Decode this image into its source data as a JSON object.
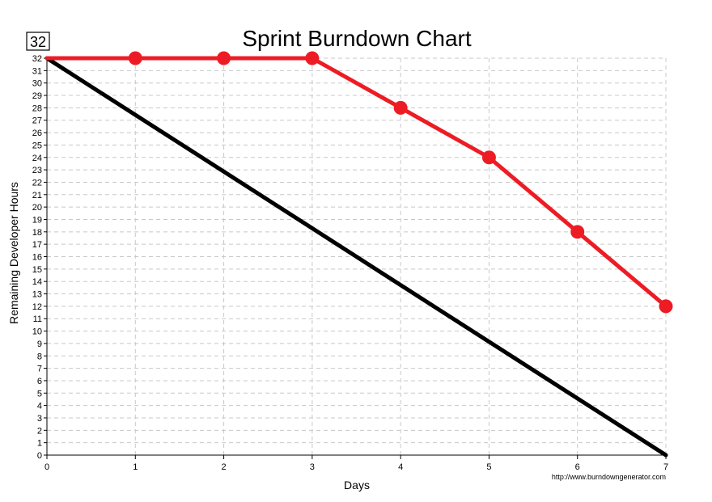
{
  "chart_data": {
    "type": "line",
    "title": "Sprint Burndown Chart",
    "xlabel": "Days",
    "ylabel": "Remaining Developer Hours",
    "x": [
      0,
      1,
      2,
      3,
      4,
      5,
      6,
      7
    ],
    "xlim": [
      0,
      7
    ],
    "ylim": [
      0,
      32
    ],
    "y_ticks_step": 1,
    "grid": true,
    "series": [
      {
        "values": [
          32,
          27.43,
          22.86,
          18.29,
          13.71,
          9.14,
          4.57,
          0
        ],
        "color": "#000000",
        "markers": false
      },
      {
        "values": [
          32,
          32,
          32,
          32,
          28,
          24,
          18,
          12
        ],
        "color": "#ed1c24",
        "markers": true
      }
    ],
    "max_value_badge": "32",
    "footer_url": "http://www.burndowngenerator.com"
  }
}
